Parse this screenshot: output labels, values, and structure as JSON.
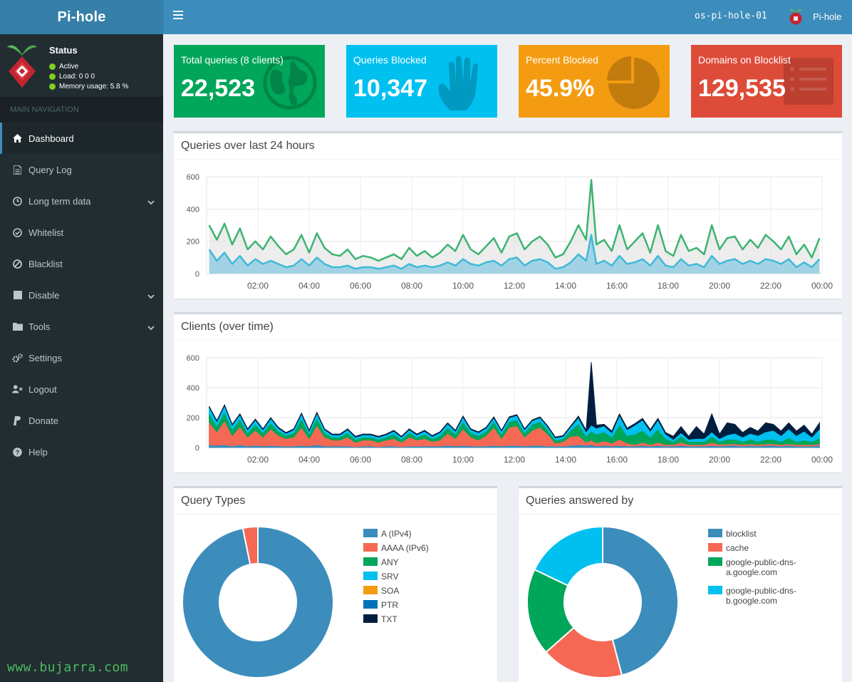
{
  "app": {
    "logo": "Pi-hole",
    "hostname": "os-pi-hole-01",
    "user": "Pi-hole",
    "watermark": "www.bujarra.com"
  },
  "status": {
    "title": "Status",
    "lines": [
      {
        "label": "Active"
      },
      {
        "label": "Load:  0  0  0"
      },
      {
        "label": "Memory usage:  5.8 %"
      }
    ]
  },
  "nav": {
    "header": "MAIN NAVIGATION",
    "items": [
      {
        "label": "Dashboard",
        "icon": "home-icon",
        "active": true
      },
      {
        "label": "Query Log",
        "icon": "file-icon"
      },
      {
        "label": "Long term data",
        "icon": "clock-icon",
        "caret": true
      },
      {
        "label": "Whitelist",
        "icon": "check-circle-icon"
      },
      {
        "label": "Blacklist",
        "icon": "ban-icon"
      },
      {
        "label": "Disable",
        "icon": "stop-icon",
        "caret": true
      },
      {
        "label": "Tools",
        "icon": "folder-icon",
        "caret": true
      },
      {
        "label": "Settings",
        "icon": "gears-icon"
      },
      {
        "label": "Logout",
        "icon": "user-times-icon"
      },
      {
        "label": "Donate",
        "icon": "paypal-icon"
      },
      {
        "label": "Help",
        "icon": "question-circle-icon"
      }
    ]
  },
  "tiles": [
    {
      "label": "Total queries (8 clients)",
      "value": "22,523",
      "color": "#00a65a",
      "icon": "globe-icon"
    },
    {
      "label": "Queries Blocked",
      "value": "10,347",
      "color": "#00c0ef",
      "icon": "hand-icon"
    },
    {
      "label": "Percent Blocked",
      "value": "45.9%",
      "color": "#f39c12",
      "icon": "pie-chart-icon"
    },
    {
      "label": "Domains on Blocklist",
      "value": "129,535",
      "color": "#dd4b39",
      "icon": "list-icon"
    }
  ],
  "panels": {
    "queries_title": "Queries over last 24 hours",
    "clients_title": "Clients (over time)",
    "types_title": "Query Types",
    "answered_title": "Queries answered by"
  },
  "chart_data": [
    {
      "type": "area",
      "id": "queries",
      "title": "Queries over last 24 hours",
      "ylim": [
        0,
        600
      ],
      "yticks": [
        0,
        200,
        400,
        600
      ],
      "xticks": [
        "02:00",
        "04:00",
        "06:00",
        "08:00",
        "10:00",
        "12:00",
        "14:00",
        "16:00",
        "18:00",
        "20:00",
        "22:00",
        "00:00"
      ],
      "grid": true,
      "x_hours": [
        0.1,
        0.4,
        0.7,
        1.0,
        1.3,
        1.6,
        1.9,
        2.2,
        2.5,
        2.8,
        3.1,
        3.4,
        3.7,
        4.0,
        4.3,
        4.6,
        4.9,
        5.2,
        5.5,
        5.8,
        6.1,
        6.4,
        6.7,
        7.0,
        7.3,
        7.6,
        7.9,
        8.2,
        8.5,
        8.8,
        9.1,
        9.4,
        9.7,
        10.0,
        10.3,
        10.6,
        10.9,
        11.2,
        11.5,
        11.8,
        12.1,
        12.4,
        12.7,
        13.0,
        13.3,
        13.6,
        13.9,
        14.2,
        14.5,
        14.8,
        15.0,
        15.2,
        15.5,
        15.8,
        16.1,
        16.4,
        16.7,
        17.0,
        17.3,
        17.6,
        17.9,
        18.2,
        18.5,
        18.8,
        19.1,
        19.4,
        19.7,
        20.0,
        20.3,
        20.6,
        20.9,
        21.2,
        21.5,
        21.8,
        22.1,
        22.4,
        22.7,
        23.0,
        23.3,
        23.6,
        23.9
      ],
      "series": [
        {
          "color": "#3cb371",
          "fill": "rgba(220,220,220,0.5)",
          "values": [
            300,
            210,
            310,
            180,
            280,
            150,
            200,
            150,
            230,
            170,
            120,
            150,
            240,
            130,
            250,
            160,
            120,
            110,
            150,
            90,
            110,
            100,
            80,
            100,
            120,
            90,
            160,
            110,
            140,
            100,
            130,
            180,
            140,
            240,
            150,
            120,
            170,
            220,
            130,
            230,
            250,
            150,
            200,
            230,
            180,
            100,
            120,
            200,
            300,
            210,
            580,
            180,
            210,
            140,
            300,
            150,
            200,
            250,
            130,
            300,
            140,
            110,
            240,
            140,
            160,
            120,
            300,
            150,
            220,
            230,
            150,
            210,
            160,
            240,
            200,
            150,
            230,
            120,
            180,
            100,
            220
          ]
        },
        {
          "color": "#3fb9d9",
          "fill": "rgba(100,190,220,0.55)",
          "values": [
            150,
            80,
            130,
            60,
            110,
            50,
            90,
            60,
            80,
            60,
            40,
            50,
            90,
            50,
            100,
            60,
            40,
            40,
            50,
            30,
            40,
            40,
            30,
            40,
            50,
            30,
            60,
            40,
            50,
            40,
            50,
            70,
            50,
            90,
            60,
            50,
            70,
            80,
            50,
            90,
            100,
            50,
            80,
            90,
            70,
            30,
            40,
            70,
            120,
            80,
            240,
            60,
            80,
            50,
            110,
            60,
            70,
            90,
            50,
            110,
            50,
            40,
            90,
            50,
            60,
            40,
            110,
            60,
            80,
            90,
            60,
            80,
            60,
            90,
            80,
            60,
            90,
            40,
            70,
            40,
            90
          ]
        }
      ]
    },
    {
      "type": "area",
      "id": "clients",
      "title": "Clients (over time)",
      "stacked": true,
      "ylim": [
        0,
        600
      ],
      "yticks": [
        0,
        200,
        400,
        600
      ],
      "xticks": [
        "02:00",
        "04:00",
        "06:00",
        "08:00",
        "10:00",
        "12:00",
        "14:00",
        "16:00",
        "18:00",
        "20:00",
        "22:00",
        "00:00"
      ],
      "grid": true,
      "x_hours": [
        0.1,
        0.4,
        0.7,
        1.0,
        1.3,
        1.6,
        1.9,
        2.2,
        2.5,
        2.8,
        3.1,
        3.4,
        3.7,
        4.0,
        4.3,
        4.6,
        4.9,
        5.2,
        5.5,
        5.8,
        6.1,
        6.4,
        6.7,
        7.0,
        7.3,
        7.6,
        7.9,
        8.2,
        8.5,
        8.8,
        9.1,
        9.4,
        9.7,
        10.0,
        10.3,
        10.6,
        10.9,
        11.2,
        11.5,
        11.8,
        12.1,
        12.4,
        12.7,
        13.0,
        13.3,
        13.6,
        13.9,
        14.2,
        14.5,
        14.8,
        15.0,
        15.2,
        15.5,
        15.8,
        16.1,
        16.4,
        16.7,
        17.0,
        17.3,
        17.6,
        17.9,
        18.2,
        18.5,
        18.8,
        19.1,
        19.4,
        19.7,
        20.0,
        20.3,
        20.6,
        20.9,
        21.2,
        21.5,
        21.8,
        22.1,
        22.4,
        22.7,
        23.0,
        23.3,
        23.6,
        23.9
      ],
      "series": [
        {
          "color": "#3c8dbc",
          "values": [
            20,
            15,
            20,
            10,
            20,
            10,
            15,
            10,
            15,
            10,
            10,
            10,
            15,
            10,
            20,
            10,
            10,
            10,
            10,
            5,
            10,
            10,
            5,
            10,
            10,
            5,
            10,
            10,
            10,
            10,
            10,
            15,
            10,
            15,
            10,
            10,
            10,
            15,
            10,
            15,
            15,
            10,
            15,
            15,
            10,
            10,
            10,
            15,
            20,
            15,
            20,
            10,
            15,
            10,
            15,
            10,
            10,
            15,
            10,
            15,
            10,
            10,
            15,
            10,
            10,
            10,
            15,
            10,
            15,
            15,
            10,
            15,
            10,
            15,
            15,
            10,
            15,
            10,
            10,
            10,
            15
          ]
        },
        {
          "color": "#f56954",
          "values": [
            150,
            90,
            160,
            70,
            120,
            60,
            100,
            60,
            110,
            70,
            50,
            60,
            120,
            50,
            130,
            60,
            40,
            40,
            60,
            30,
            40,
            40,
            30,
            40,
            50,
            30,
            60,
            40,
            50,
            30,
            40,
            80,
            50,
            110,
            60,
            40,
            70,
            120,
            50,
            120,
            130,
            60,
            100,
            120,
            80,
            20,
            30,
            60,
            60,
            20,
            30,
            20,
            30,
            20,
            40,
            20,
            10,
            20,
            10,
            20,
            10,
            10,
            20,
            10,
            10,
            10,
            20,
            10,
            10,
            10,
            10,
            10,
            10,
            10,
            10,
            10,
            10,
            10,
            10,
            10,
            10
          ]
        },
        {
          "color": "#00a65a",
          "values": [
            60,
            40,
            60,
            40,
            50,
            30,
            40,
            30,
            40,
            30,
            20,
            30,
            60,
            30,
            50,
            30,
            20,
            20,
            30,
            20,
            20,
            20,
            20,
            20,
            30,
            20,
            30,
            20,
            30,
            20,
            30,
            40,
            30,
            50,
            30,
            30,
            30,
            40,
            30,
            40,
            40,
            30,
            40,
            40,
            30,
            20,
            20,
            40,
            80,
            40,
            60,
            60,
            60,
            40,
            100,
            50,
            70,
            80,
            50,
            90,
            40,
            20,
            40,
            20,
            20,
            20,
            40,
            20,
            30,
            30,
            20,
            30,
            20,
            30,
            30,
            20,
            40,
            20,
            30,
            20,
            40
          ]
        },
        {
          "color": "#00c0ef",
          "values": [
            40,
            30,
            40,
            30,
            30,
            20,
            30,
            20,
            30,
            20,
            15,
            20,
            30,
            20,
            30,
            20,
            15,
            15,
            20,
            15,
            15,
            15,
            15,
            15,
            20,
            15,
            20,
            15,
            20,
            15,
            20,
            25,
            20,
            30,
            20,
            20,
            20,
            25,
            20,
            25,
            30,
            20,
            25,
            25,
            20,
            15,
            15,
            25,
            40,
            30,
            40,
            40,
            40,
            30,
            60,
            40,
            60,
            70,
            40,
            60,
            30,
            15,
            25,
            15,
            20,
            20,
            30,
            20,
            30,
            40,
            30,
            40,
            40,
            50,
            60,
            40,
            60,
            40,
            60,
            30,
            60
          ]
        },
        {
          "color": "#001f3f",
          "values": [
            5,
            5,
            5,
            5,
            5,
            5,
            5,
            5,
            5,
            5,
            5,
            5,
            5,
            5,
            5,
            5,
            5,
            5,
            5,
            5,
            5,
            5,
            5,
            5,
            5,
            5,
            5,
            5,
            5,
            5,
            5,
            5,
            5,
            5,
            5,
            5,
            5,
            5,
            5,
            5,
            5,
            5,
            5,
            5,
            5,
            5,
            5,
            5,
            10,
            10,
            420,
            20,
            10,
            10,
            10,
            10,
            10,
            10,
            10,
            10,
            10,
            20,
            40,
            20,
            80,
            30,
            120,
            30,
            80,
            60,
            30,
            40,
            30,
            60,
            40,
            30,
            40,
            30,
            40,
            20,
            40
          ]
        }
      ]
    },
    {
      "type": "pie",
      "id": "query-types",
      "title": "Query Types",
      "donut": true,
      "labels": [
        "A (IPv4)",
        "AAAA (IPv6)",
        "ANY",
        "SRV",
        "SOA",
        "PTR",
        "TXT"
      ],
      "colors": [
        "#3c8dbc",
        "#f56954",
        "#00a65a",
        "#00c0ef",
        "#f39c12",
        "#0073b7",
        "#001f3f"
      ],
      "values": [
        96.8,
        3.2,
        0,
        0,
        0,
        0,
        0
      ]
    },
    {
      "type": "pie",
      "id": "answered-by",
      "title": "Queries answered by",
      "donut": true,
      "labels": [
        "blocklist",
        "cache",
        "google-public-dns-a.google.com",
        "google-public-dns-b.google.com"
      ],
      "legend_lines": [
        [
          "blocklist"
        ],
        [
          "cache"
        ],
        [
          "google-public-dns-",
          "a.google.com"
        ],
        [
          "google-public-dns-",
          "b.google.com"
        ]
      ],
      "colors": [
        "#3c8dbc",
        "#f56954",
        "#00a65a",
        "#00c0ef"
      ],
      "values": [
        45.9,
        17.6,
        18.6,
        17.9
      ]
    }
  ]
}
